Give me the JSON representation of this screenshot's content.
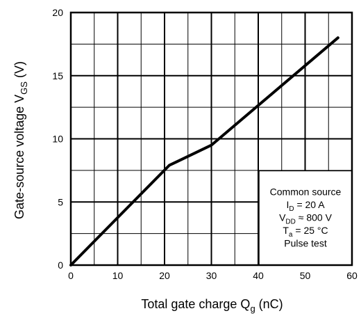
{
  "chart_data": {
    "type": "line",
    "xlabel": "Total gate charge",
    "xlabel_symbol": "Q",
    "xlabel_symbol_sub": "g",
    "xlabel_unit": "(nC)",
    "ylabel": "Gate-source voltage",
    "ylabel_symbol": "V",
    "ylabel_symbol_sub": "GS",
    "ylabel_unit": "(V)",
    "xlim": [
      0,
      60
    ],
    "ylim": [
      0,
      20
    ],
    "x_ticks": [
      0,
      10,
      20,
      30,
      40,
      50,
      60
    ],
    "y_ticks": [
      0,
      5,
      10,
      15,
      20
    ],
    "x_minor_grid": [
      5,
      15,
      25,
      35,
      45,
      55
    ],
    "y_minor_grid": [
      2.5,
      7.5,
      12.5,
      17.5
    ],
    "grid": true,
    "series": [
      {
        "x": [
          0,
          21,
          30,
          57
        ],
        "y": [
          0,
          7.9,
          9.5,
          18.0
        ]
      }
    ],
    "legend_box": {
      "placement": "bottom-right",
      "lines": [
        {
          "text": "Common source"
        },
        {
          "main": "I",
          "sub": "D",
          "rest": " = 20 A"
        },
        {
          "main": "V",
          "sub": "DD",
          "rest": " ≈ 800 V"
        },
        {
          "main": "T",
          "sub": "a",
          "rest": " = 25 °C"
        },
        {
          "text": "Pulse test"
        }
      ]
    }
  }
}
